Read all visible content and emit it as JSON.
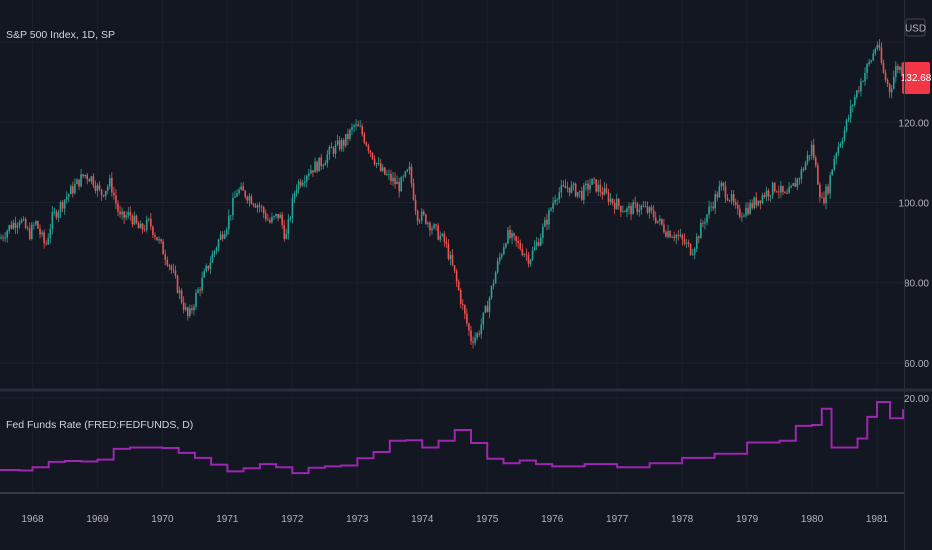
{
  "main_pane": {
    "title": "S&P 500 Index, 1D, SP",
    "currency": "USD",
    "last_price": "132.68",
    "last_price_color": "#f23645",
    "up_color": "#26a69a",
    "down_color": "#ef5350"
  },
  "indicator_pane": {
    "title": "Fed Funds Rate (FRED:FEDFUNDS, D)",
    "line_color": "#9c27b0"
  },
  "chart_data": [
    {
      "type": "line",
      "title": "S&P 500 Index, 1D, SP",
      "ylim": [
        55,
        143
      ],
      "y_ticks": [
        "60.00",
        "80.00",
        "100.00",
        "120.00"
      ],
      "x_ticks": [
        "1968",
        "1969",
        "1970",
        "1971",
        "1972",
        "1973",
        "1974",
        "1975",
        "1976",
        "1977",
        "1978",
        "1979",
        "1980",
        "1981"
      ],
      "xlim": [
        1967.5,
        1981.4
      ],
      "series": [
        {
          "x": [
            1967.5,
            1967.65,
            1967.8,
            1967.95,
            1968.05,
            1968.2,
            1968.3,
            1968.5,
            1968.65,
            1968.8,
            1968.92,
            1969.05,
            1969.2,
            1969.35,
            1969.5,
            1969.65,
            1969.8,
            1969.95,
            1970.1,
            1970.25,
            1970.4,
            1970.5,
            1970.65,
            1970.85,
            1971.0,
            1971.15,
            1971.3,
            1971.5,
            1971.65,
            1971.8,
            1971.9,
            1972.05,
            1972.25,
            1972.45,
            1972.6,
            1972.8,
            1972.95,
            1973.05,
            1973.2,
            1973.35,
            1973.5,
            1973.65,
            1973.8,
            1973.92,
            1974.05,
            1974.2,
            1974.35,
            1974.5,
            1974.65,
            1974.75,
            1974.85,
            1975.0,
            1975.15,
            1975.3,
            1975.5,
            1975.65,
            1975.8,
            1975.95,
            1976.05,
            1976.25,
            1976.45,
            1976.6,
            1976.75,
            1976.95,
            1977.15,
            1977.35,
            1977.55,
            1977.75,
            1977.9,
            1978.15,
            1978.35,
            1978.6,
            1978.75,
            1978.85,
            1979.05,
            1979.25,
            1979.45,
            1979.6,
            1979.75,
            1979.85,
            1980.0,
            1980.15,
            1980.25,
            1980.35,
            1980.5,
            1980.65,
            1980.8,
            1980.92,
            1981.0,
            1981.1,
            1981.2,
            1981.3,
            1981.4
          ],
          "values": [
            91,
            94,
            96,
            92,
            95,
            89,
            96,
            101,
            104,
            107,
            106,
            102,
            105,
            96,
            97,
            93,
            95,
            90,
            85,
            78,
            71,
            76,
            82,
            90,
            95,
            103,
            102,
            99,
            95,
            97,
            91,
            104,
            108,
            110,
            113,
            115,
            119,
            118,
            113,
            108,
            106,
            104,
            108,
            97,
            96,
            93,
            90,
            82,
            72,
            66,
            67,
            74,
            84,
            92,
            89,
            86,
            91,
            97,
            102,
            104,
            102,
            105,
            103,
            100,
            98,
            99,
            97,
            93,
            92,
            88,
            96,
            104,
            101,
            97,
            99,
            102,
            104,
            101,
            105,
            108,
            114,
            100,
            104,
            112,
            118,
            126,
            132,
            136,
            140,
            132,
            128,
            134,
            133
          ]
        }
      ]
    },
    {
      "type": "line",
      "title": "Fed Funds Rate (FRED:FEDFUNDS, D)",
      "ylim": [
        0,
        20
      ],
      "y_ticks": [
        "20.00"
      ],
      "series": [
        {
          "x": [
            1967.5,
            1967.8,
            1968.0,
            1968.25,
            1968.5,
            1968.75,
            1969.0,
            1969.25,
            1969.5,
            1969.75,
            1970.0,
            1970.25,
            1970.5,
            1970.75,
            1971.0,
            1971.25,
            1971.5,
            1971.75,
            1972.0,
            1972.25,
            1972.5,
            1972.75,
            1973.0,
            1973.25,
            1973.5,
            1973.75,
            1974.0,
            1974.25,
            1974.5,
            1974.75,
            1975.0,
            1975.25,
            1975.5,
            1975.75,
            1976.0,
            1976.5,
            1977.0,
            1977.5,
            1978.0,
            1978.5,
            1979.0,
            1979.5,
            1979.75,
            1980.0,
            1980.15,
            1980.3,
            1980.5,
            1980.7,
            1980.85,
            1981.0,
            1981.2,
            1981.4
          ],
          "values": [
            4.0,
            3.9,
            4.6,
            5.8,
            6.0,
            5.9,
            6.3,
            8.7,
            9.0,
            9.0,
            8.9,
            7.8,
            6.7,
            5.2,
            3.7,
            4.4,
            5.3,
            4.6,
            3.3,
            4.5,
            4.8,
            5.0,
            6.6,
            8.0,
            10.5,
            10.6,
            9.0,
            10.5,
            12.9,
            10.0,
            6.5,
            5.5,
            6.1,
            5.3,
            4.8,
            5.3,
            4.6,
            5.5,
            6.7,
            7.6,
            10.1,
            10.5,
            13.8,
            14.0,
            17.6,
            9.0,
            9.0,
            11.0,
            15.8,
            19.1,
            15.5,
            17.5
          ]
        }
      ]
    }
  ]
}
